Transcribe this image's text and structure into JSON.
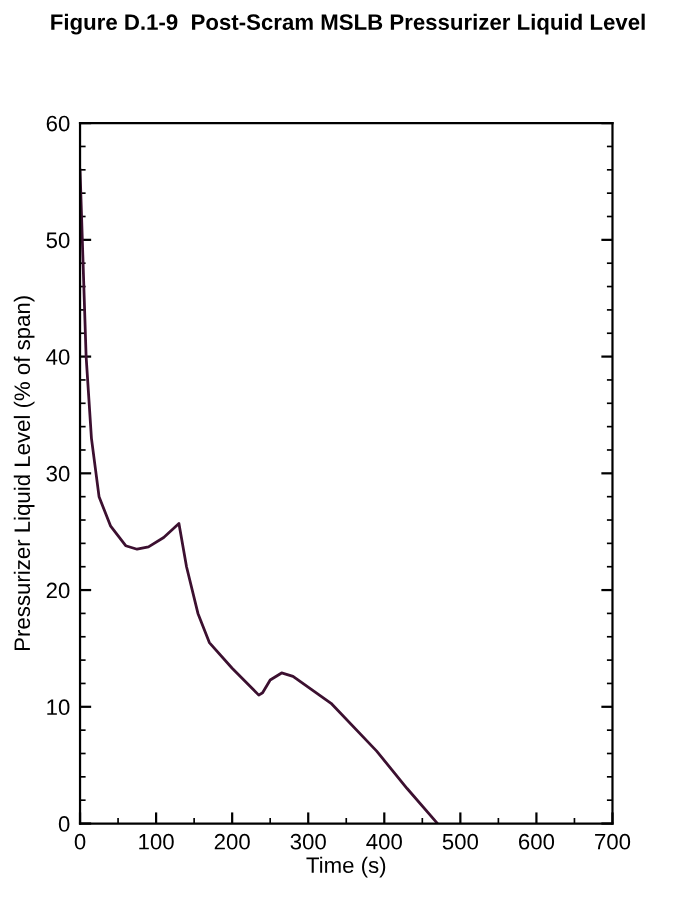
{
  "chart_data": {
    "type": "line",
    "title": "Figure D.1-9  Post-Scram MSLB Pressurizer Liquid Level",
    "xlabel": "Time (s)",
    "ylabel": "Pressurizer Liquid Level (% of span)",
    "x": [
      0,
      3,
      8,
      15,
      25,
      40,
      60,
      75,
      90,
      110,
      130,
      140,
      155,
      170,
      200,
      235,
      240,
      250,
      265,
      280,
      330,
      390,
      430,
      470
    ],
    "series": [
      {
        "color": "#3c1030",
        "values": [
          56,
          50,
          40,
          33,
          28,
          25.5,
          23.8,
          23.5,
          23.7,
          24.5,
          25.7,
          22,
          18,
          15.5,
          13.3,
          11,
          11.2,
          12.3,
          12.9,
          12.6,
          10.3,
          6.2,
          3,
          0
        ]
      }
    ],
    "xlim": [
      0,
      700
    ],
    "ylim": [
      0,
      60
    ],
    "xticks": [
      0,
      100,
      200,
      300,
      400,
      500,
      600,
      700
    ],
    "yticks": [
      0,
      10,
      20,
      30,
      40,
      50,
      60
    ],
    "grid": false,
    "legend": false,
    "marker": "none",
    "line_style": "solid"
  }
}
